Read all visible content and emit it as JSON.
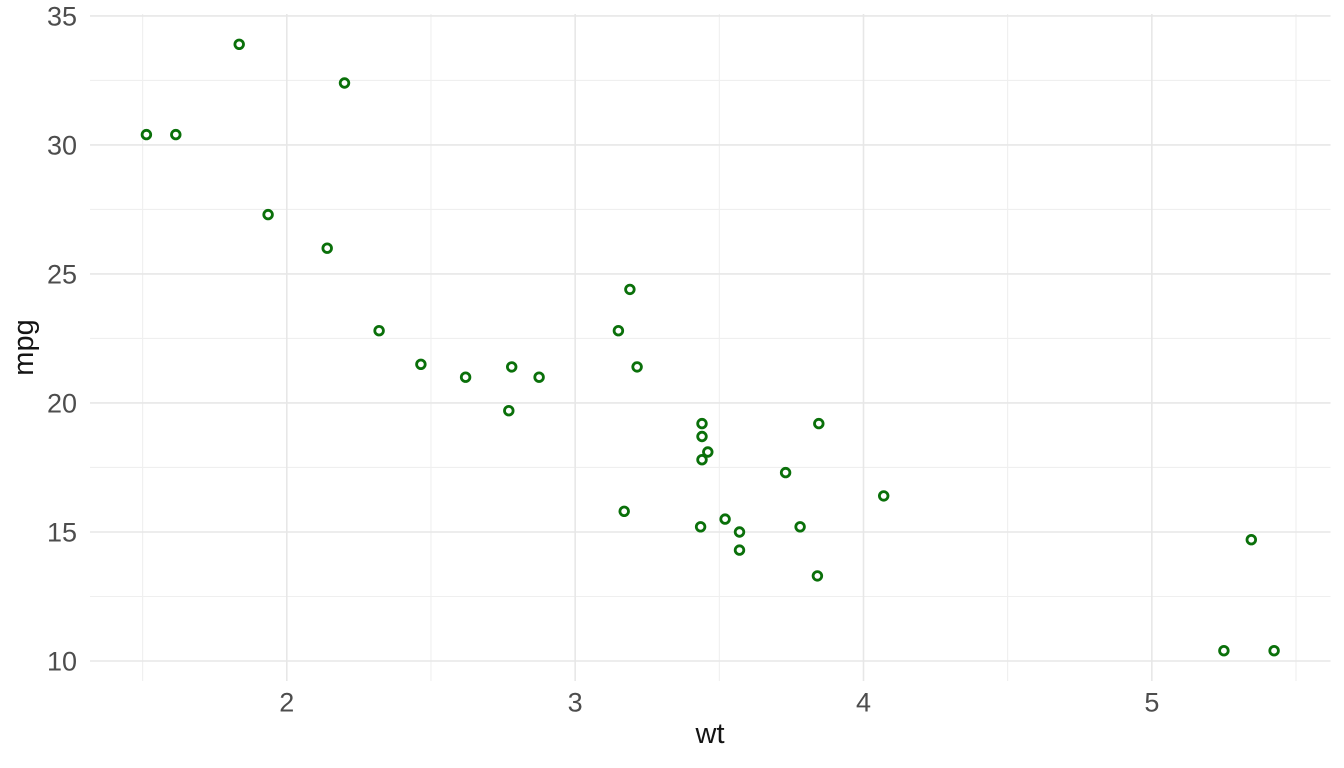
{
  "chart_data": {
    "type": "scatter",
    "title": "",
    "xlabel": "wt",
    "ylabel": "mpg",
    "x_ticks": [
      2,
      3,
      4,
      5
    ],
    "x_minor_ticks": [
      1.5,
      2.5,
      3.5,
      4.5,
      5.5
    ],
    "y_ticks": [
      10,
      15,
      20,
      25,
      30,
      35
    ],
    "y_minor_ticks": [
      12.5,
      17.5,
      22.5,
      27.5,
      32.5
    ],
    "xlim": [
      1.3175,
      5.6196
    ],
    "ylim": [
      9.225,
      35.075
    ],
    "grid": true,
    "legend": false,
    "point_style": {
      "shape": "open-circle",
      "stroke_color": "#0a700a",
      "fill_color": "#ffffff"
    },
    "colors": {
      "background": "#ffffff",
      "grid_major": "#e7e7e7",
      "grid_minor": "#efefef",
      "tick_text": "#4d4d4d",
      "axis_title_text": "#141414"
    },
    "points": [
      {
        "wt": 2.62,
        "mpg": 21.0
      },
      {
        "wt": 2.875,
        "mpg": 21.0
      },
      {
        "wt": 2.32,
        "mpg": 22.8
      },
      {
        "wt": 3.215,
        "mpg": 21.4
      },
      {
        "wt": 3.44,
        "mpg": 18.7
      },
      {
        "wt": 3.46,
        "mpg": 18.1
      },
      {
        "wt": 3.57,
        "mpg": 14.3
      },
      {
        "wt": 3.19,
        "mpg": 24.4
      },
      {
        "wt": 3.15,
        "mpg": 22.8
      },
      {
        "wt": 3.44,
        "mpg": 19.2
      },
      {
        "wt": 3.44,
        "mpg": 17.8
      },
      {
        "wt": 4.07,
        "mpg": 16.4
      },
      {
        "wt": 3.73,
        "mpg": 17.3
      },
      {
        "wt": 3.78,
        "mpg": 15.2
      },
      {
        "wt": 5.25,
        "mpg": 10.4
      },
      {
        "wt": 5.424,
        "mpg": 10.4
      },
      {
        "wt": 5.345,
        "mpg": 14.7
      },
      {
        "wt": 2.2,
        "mpg": 32.4
      },
      {
        "wt": 1.615,
        "mpg": 30.4
      },
      {
        "wt": 1.835,
        "mpg": 33.9
      },
      {
        "wt": 2.465,
        "mpg": 21.5
      },
      {
        "wt": 3.52,
        "mpg": 15.5
      },
      {
        "wt": 3.435,
        "mpg": 15.2
      },
      {
        "wt": 3.84,
        "mpg": 13.3
      },
      {
        "wt": 3.845,
        "mpg": 19.2
      },
      {
        "wt": 1.935,
        "mpg": 27.3
      },
      {
        "wt": 2.14,
        "mpg": 26.0
      },
      {
        "wt": 1.513,
        "mpg": 30.4
      },
      {
        "wt": 3.17,
        "mpg": 15.8
      },
      {
        "wt": 2.77,
        "mpg": 19.7
      },
      {
        "wt": 3.57,
        "mpg": 15.0
      },
      {
        "wt": 2.78,
        "mpg": 21.4
      }
    ]
  }
}
